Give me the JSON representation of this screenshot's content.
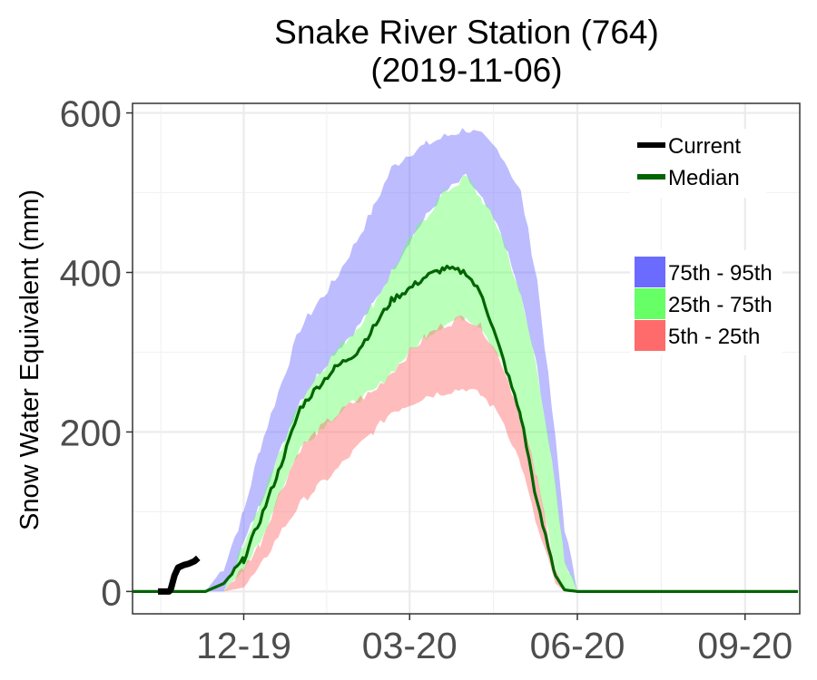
{
  "chart_data": {
    "type": "area",
    "title": "Snake River Station (764)",
    "subtitle": "(2019-11-06)",
    "xlabel": "",
    "ylabel": "Snow Water Equivalent (mm)",
    "x_tick_labels": [
      "12-19",
      "03-20",
      "06-20",
      "09-20"
    ],
    "x_tick_dates": [
      "2019-12-01",
      "2020-03-01",
      "2020-06-01",
      "2020-09-01"
    ],
    "y_ticks": [
      0,
      200,
      400,
      600
    ],
    "xlim": [
      "2019-10-01",
      "2020-10-01"
    ],
    "ylim": [
      -28,
      612
    ],
    "grid": true,
    "x": [
      "2019-10-01",
      "2019-10-10",
      "2019-10-20",
      "2019-11-01",
      "2019-11-10",
      "2019-11-20",
      "2019-12-01",
      "2019-12-10",
      "2019-12-20",
      "2020-01-01",
      "2020-01-10",
      "2020-01-20",
      "2020-02-01",
      "2020-02-10",
      "2020-02-20",
      "2020-03-01",
      "2020-03-10",
      "2020-03-20",
      "2020-04-01",
      "2020-04-10",
      "2020-04-20",
      "2020-05-01",
      "2020-05-10",
      "2020-05-20",
      "2020-05-25",
      "2020-06-01",
      "2020-06-05",
      "2020-06-10",
      "2020-07-01",
      "2020-08-01",
      "2020-09-01",
      "2020-09-30"
    ],
    "series": [
      {
        "name": "5th - 25th",
        "color": "#ff6b6b",
        "lower": [
          0,
          0,
          0,
          0,
          0,
          0,
          5,
          30,
          70,
          110,
          130,
          150,
          180,
          200,
          225,
          235,
          245,
          250,
          255,
          245,
          220,
          160,
          80,
          10,
          0,
          0,
          0,
          0,
          0,
          0,
          0,
          0
        ],
        "upper": [
          0,
          0,
          0,
          0,
          0,
          0,
          30,
          60,
          120,
          180,
          200,
          220,
          240,
          250,
          275,
          300,
          320,
          335,
          345,
          330,
          290,
          220,
          140,
          30,
          0,
          0,
          0,
          0,
          0,
          0,
          0,
          0
        ]
      },
      {
        "name": "25th - 75th",
        "color": "#66ff66",
        "lower": [
          0,
          0,
          0,
          0,
          0,
          0,
          30,
          60,
          120,
          180,
          200,
          220,
          240,
          250,
          275,
          300,
          320,
          335,
          345,
          330,
          290,
          220,
          140,
          30,
          0,
          0,
          0,
          0,
          0,
          0,
          0,
          0
        ],
        "upper": [
          0,
          0,
          0,
          0,
          0,
          0,
          60,
          110,
          170,
          240,
          270,
          300,
          330,
          360,
          400,
          440,
          470,
          500,
          520,
          490,
          450,
          370,
          280,
          130,
          40,
          0,
          0,
          0,
          0,
          0,
          0,
          0
        ]
      },
      {
        "name": "75th - 95th",
        "color": "#6b6bff",
        "lower": [
          0,
          0,
          0,
          0,
          0,
          0,
          60,
          110,
          170,
          240,
          270,
          300,
          330,
          360,
          400,
          440,
          470,
          500,
          520,
          490,
          450,
          370,
          280,
          130,
          40,
          0,
          0,
          0,
          0,
          0,
          0,
          0
        ],
        "upper": [
          0,
          0,
          0,
          0,
          0,
          30,
          100,
          180,
          250,
          330,
          360,
          390,
          440,
          480,
          530,
          550,
          560,
          570,
          580,
          570,
          550,
          500,
          390,
          190,
          80,
          0,
          0,
          0,
          0,
          0,
          0,
          0
        ]
      }
    ],
    "median": {
      "name": "Median",
      "color": "#006400",
      "values": [
        0,
        0,
        0,
        0,
        0,
        10,
        40,
        90,
        150,
        230,
        255,
        280,
        300,
        330,
        365,
        380,
        395,
        405,
        400,
        370,
        300,
        220,
        110,
        20,
        2,
        0,
        0,
        0,
        0,
        0,
        0,
        0
      ]
    },
    "current": {
      "name": "Current",
      "color": "#000000",
      "x": [
        "2019-10-15",
        "2019-10-21",
        "2019-10-22",
        "2019-10-24",
        "2019-10-26",
        "2019-10-29",
        "2019-11-01",
        "2019-11-04",
        "2019-11-06"
      ],
      "values": [
        0,
        0,
        3,
        20,
        30,
        33,
        35,
        38,
        42
      ]
    },
    "legend": {
      "position": "top-right",
      "lines": [
        "Current",
        "Median"
      ],
      "fills": [
        "75th - 95th",
        "25th - 75th",
        "5th - 25th"
      ]
    }
  }
}
